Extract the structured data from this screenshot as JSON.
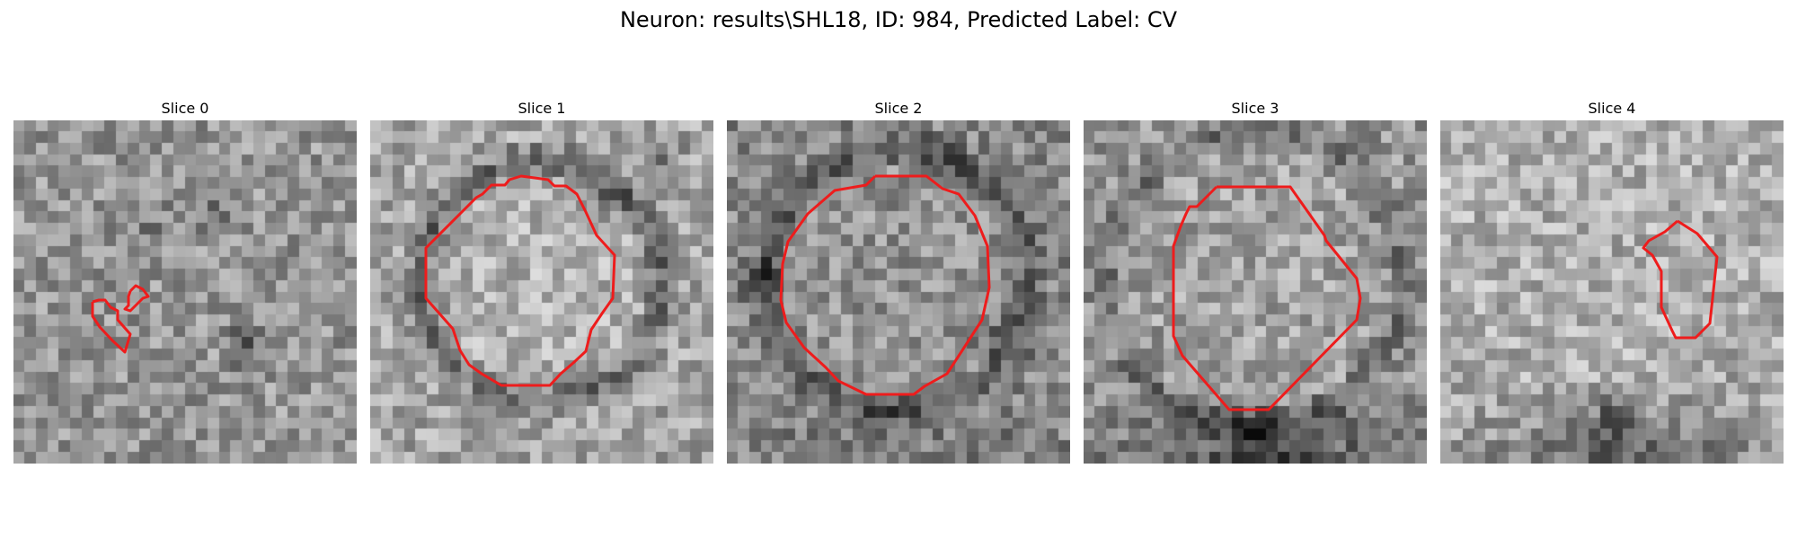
{
  "figure": {
    "title": "Neuron: results\\SHL18, ID: 984, Predicted Label: CV"
  },
  "colors": {
    "contour": "#ee1c1c",
    "background": "#ffffff"
  },
  "panels": [
    {
      "title": "Slice 0"
    },
    {
      "title": "Slice 1"
    },
    {
      "title": "Slice 2"
    },
    {
      "title": "Slice 3"
    },
    {
      "title": "Slice 4"
    }
  ]
}
